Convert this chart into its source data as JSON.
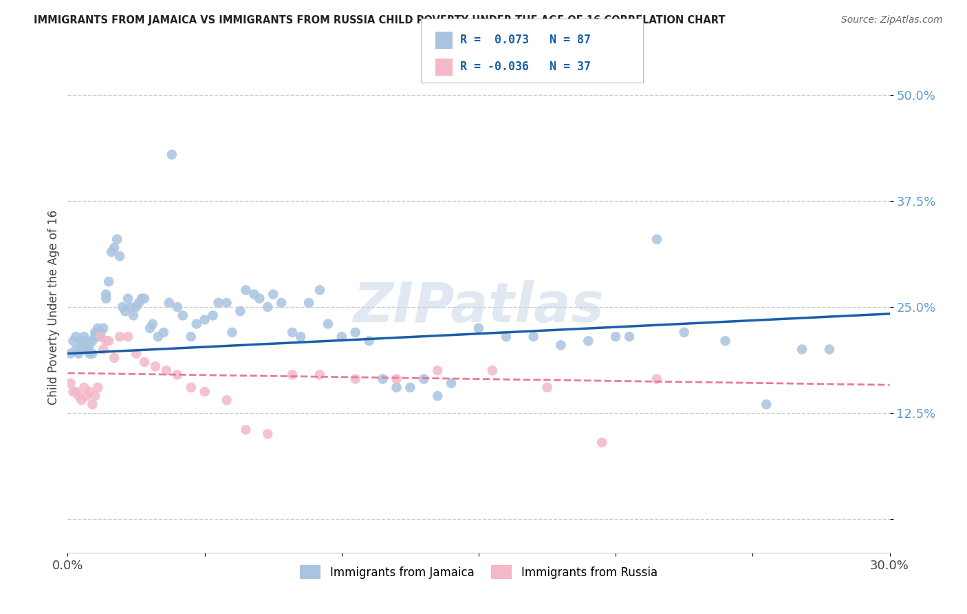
{
  "title": "IMMIGRANTS FROM JAMAICA VS IMMIGRANTS FROM RUSSIA CHILD POVERTY UNDER THE AGE OF 16 CORRELATION CHART",
  "source": "Source: ZipAtlas.com",
  "ylabel": "Child Poverty Under the Age of 16",
  "xlim": [
    0.0,
    0.3
  ],
  "ylim": [
    -0.04,
    0.54
  ],
  "yticks": [
    0.0,
    0.125,
    0.25,
    0.375,
    0.5
  ],
  "ytick_labels": [
    "",
    "12.5%",
    "25.0%",
    "37.5%",
    "50.0%"
  ],
  "xticks": [
    0.0,
    0.05,
    0.1,
    0.15,
    0.2,
    0.25,
    0.3
  ],
  "xtick_labels": [
    "0.0%",
    "",
    "",
    "",
    "",
    "",
    "30.0%"
  ],
  "jamaica_R": 0.073,
  "jamaica_N": 87,
  "russia_R": -0.036,
  "russia_N": 37,
  "jamaica_color": "#a8c4e0",
  "russia_color": "#f4b8c8",
  "jamaica_line_color": "#1a5fa8",
  "russia_line_color": "#e8799a",
  "background_color": "#ffffff",
  "watermark": "ZIPatlas",
  "grid_color": "#cccccc",
  "jamaica_line_start_y": 0.195,
  "jamaica_line_end_y": 0.242,
  "russia_line_start_y": 0.172,
  "russia_line_end_y": 0.158,
  "jamaica_x": [
    0.001,
    0.002,
    0.003,
    0.003,
    0.004,
    0.005,
    0.005,
    0.006,
    0.006,
    0.007,
    0.007,
    0.008,
    0.008,
    0.009,
    0.009,
    0.01,
    0.01,
    0.011,
    0.011,
    0.012,
    0.012,
    0.013,
    0.014,
    0.014,
    0.015,
    0.016,
    0.017,
    0.018,
    0.019,
    0.02,
    0.021,
    0.022,
    0.023,
    0.024,
    0.025,
    0.026,
    0.027,
    0.028,
    0.03,
    0.031,
    0.033,
    0.035,
    0.037,
    0.038,
    0.04,
    0.042,
    0.045,
    0.047,
    0.05,
    0.053,
    0.055,
    0.058,
    0.06,
    0.063,
    0.065,
    0.068,
    0.07,
    0.073,
    0.075,
    0.078,
    0.082,
    0.085,
    0.088,
    0.092,
    0.095,
    0.1,
    0.105,
    0.11,
    0.115,
    0.12,
    0.125,
    0.13,
    0.135,
    0.14,
    0.15,
    0.16,
    0.17,
    0.18,
    0.19,
    0.2,
    0.205,
    0.215,
    0.225,
    0.24,
    0.255,
    0.268,
    0.278
  ],
  "jamaica_y": [
    0.195,
    0.21,
    0.215,
    0.2,
    0.195,
    0.21,
    0.205,
    0.215,
    0.2,
    0.21,
    0.2,
    0.205,
    0.195,
    0.21,
    0.195,
    0.215,
    0.22,
    0.215,
    0.225,
    0.215,
    0.22,
    0.225,
    0.265,
    0.26,
    0.28,
    0.315,
    0.32,
    0.33,
    0.31,
    0.25,
    0.245,
    0.26,
    0.25,
    0.24,
    0.25,
    0.255,
    0.26,
    0.26,
    0.225,
    0.23,
    0.215,
    0.22,
    0.255,
    0.43,
    0.25,
    0.24,
    0.215,
    0.23,
    0.235,
    0.24,
    0.255,
    0.255,
    0.22,
    0.245,
    0.27,
    0.265,
    0.26,
    0.25,
    0.265,
    0.255,
    0.22,
    0.215,
    0.255,
    0.27,
    0.23,
    0.215,
    0.22,
    0.21,
    0.165,
    0.155,
    0.155,
    0.165,
    0.145,
    0.16,
    0.225,
    0.215,
    0.215,
    0.205,
    0.21,
    0.215,
    0.215,
    0.33,
    0.22,
    0.21,
    0.135,
    0.2,
    0.2
  ],
  "russia_x": [
    0.001,
    0.002,
    0.003,
    0.004,
    0.005,
    0.006,
    0.007,
    0.008,
    0.009,
    0.01,
    0.011,
    0.012,
    0.013,
    0.014,
    0.015,
    0.017,
    0.019,
    0.022,
    0.025,
    0.028,
    0.032,
    0.036,
    0.04,
    0.045,
    0.05,
    0.058,
    0.065,
    0.073,
    0.082,
    0.092,
    0.105,
    0.12,
    0.135,
    0.155,
    0.175,
    0.195,
    0.215
  ],
  "russia_y": [
    0.16,
    0.15,
    0.15,
    0.145,
    0.14,
    0.155,
    0.145,
    0.15,
    0.135,
    0.145,
    0.155,
    0.215,
    0.2,
    0.21,
    0.21,
    0.19,
    0.215,
    0.215,
    0.195,
    0.185,
    0.18,
    0.175,
    0.17,
    0.155,
    0.15,
    0.14,
    0.105,
    0.1,
    0.17,
    0.17,
    0.165,
    0.165,
    0.175,
    0.175,
    0.155,
    0.09,
    0.165
  ]
}
